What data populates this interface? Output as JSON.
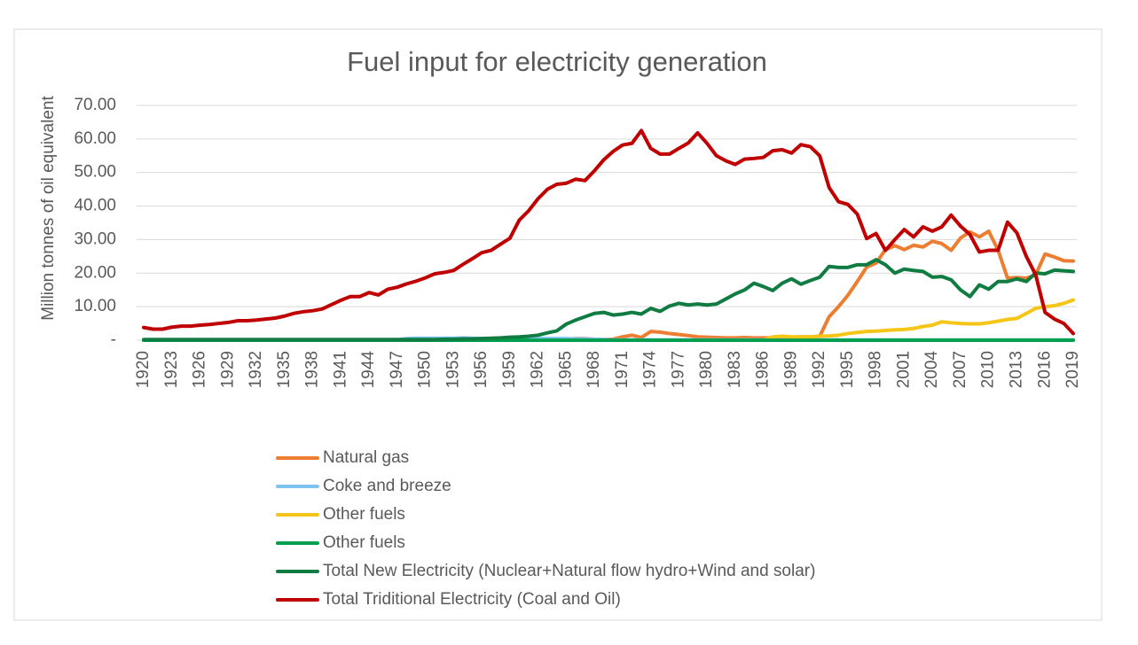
{
  "chart_data": {
    "type": "line",
    "title": "Fuel input for electricity generation",
    "y_label": "Million tonnes of oil equivalent",
    "categories": [
      "1920",
      null,
      null,
      "1923",
      null,
      null,
      "1926",
      null,
      null,
      "1929",
      null,
      null,
      "1932",
      null,
      null,
      "1935",
      null,
      null,
      "1938",
      null,
      null,
      "1941",
      null,
      null,
      "1944",
      null,
      null,
      "1947",
      null,
      null,
      "1950",
      null,
      null,
      "1953",
      null,
      null,
      "1956",
      null,
      null,
      "1959",
      null,
      null,
      "1962",
      null,
      null,
      "1965",
      null,
      null,
      "1968",
      null,
      null,
      "1971",
      null,
      null,
      "1974",
      null,
      null,
      "1977",
      null,
      null,
      "1980",
      null,
      null,
      "1983",
      null,
      null,
      "1986",
      null,
      null,
      "1989",
      null,
      null,
      "1992",
      null,
      null,
      "1995",
      null,
      null,
      "1998",
      null,
      null,
      "2001",
      null,
      null,
      "2004",
      null,
      null,
      "2007",
      null,
      null,
      "2010",
      null,
      null,
      "2013",
      null,
      null,
      "2016",
      null,
      null,
      "2019"
    ],
    "ylim": [
      0,
      70
    ],
    "yticks": [
      {
        "value": 0,
        "label": "-"
      },
      {
        "value": 10,
        "label": "10.00"
      },
      {
        "value": 20,
        "label": "20.00"
      },
      {
        "value": 30,
        "label": "30.00"
      },
      {
        "value": 40,
        "label": "40.00"
      },
      {
        "value": 50,
        "label": "50.00"
      },
      {
        "value": 60,
        "label": "60.00"
      },
      {
        "value": 70,
        "label": "70.00"
      }
    ],
    "grid": true,
    "legend": "bottom",
    "series": [
      {
        "name": "Natural gas",
        "color": "#ED7D31",
        "values": [
          0,
          0,
          0,
          0,
          0,
          0,
          0,
          0,
          0,
          0,
          0,
          0,
          0,
          0,
          0,
          0,
          0,
          0,
          0,
          0,
          0,
          0,
          0,
          0,
          0,
          0,
          0,
          0,
          0,
          0,
          0,
          0,
          0,
          0,
          0,
          0,
          0,
          0,
          0,
          0,
          0,
          0,
          0,
          0,
          0,
          0.3,
          0.5,
          0.5,
          0.3,
          0.2,
          0.3,
          1.0,
          1.5,
          0.8,
          2.6,
          2.4,
          2.0,
          1.7,
          1.4,
          1.0,
          0.9,
          0.8,
          0.7,
          0.7,
          0.8,
          0.7,
          0.7,
          0.7,
          0.8,
          0.9,
          1.0,
          1.0,
          1.2,
          7.0,
          10.0,
          13.4,
          17.5,
          21.8,
          23.0,
          27.0,
          28.2,
          27.0,
          28.3,
          27.8,
          29.5,
          28.8,
          26.8,
          30.5,
          32.3,
          30.8,
          32.5,
          26.8,
          18.5,
          18.7,
          18.5,
          19.5,
          25.7,
          24.8,
          23.7,
          23.6
        ]
      },
      {
        "name": "Coke and breeze",
        "color": "#7FC4F0",
        "values": [
          0.1,
          0.1,
          0.1,
          0.1,
          0.1,
          0.1,
          0.1,
          0.1,
          0.1,
          0.1,
          0.1,
          0.1,
          0.1,
          0.1,
          0.1,
          0.1,
          0.1,
          0.1,
          0.1,
          0.1,
          0.1,
          0.1,
          0.1,
          0.1,
          0.1,
          0.1,
          0.1,
          0.1,
          0.5,
          0.6,
          0.6,
          0.6,
          0.6,
          0.6,
          0.7,
          0.6,
          0.5,
          0.5,
          0.5,
          0.5,
          0.5,
          0.5,
          0.5,
          0.5,
          0.5,
          0.5,
          0.4,
          0.4,
          0.3,
          0.2,
          0.1,
          0.1,
          0.1,
          0.1,
          0.1,
          0.1,
          0.1,
          0.1,
          0.1,
          0.1,
          0.1,
          0.1,
          0.1,
          0.1,
          0.1,
          0.1,
          0.1,
          0.1,
          0.1,
          0.1,
          0.1,
          0.1,
          0.1,
          0.1,
          0.1,
          0.1,
          0.1,
          0.1,
          0.1,
          0.1,
          0.1,
          0.1,
          0.1,
          0.1,
          0.1,
          0.1,
          0.1,
          0.1,
          0.1,
          0.1,
          0.1,
          0.1,
          0.1,
          0.1,
          0.1,
          0.1,
          0.1,
          0.1,
          0.1,
          0.1
        ]
      },
      {
        "name": "Other fuels",
        "color": "#F5C518",
        "values": [
          0,
          0,
          0,
          0,
          0,
          0,
          0,
          0,
          0,
          0,
          0,
          0,
          0,
          0,
          0,
          0,
          0,
          0,
          0,
          0,
          0,
          0,
          0,
          0,
          0,
          0,
          0,
          0,
          0,
          0,
          0,
          0,
          0,
          0,
          0,
          0,
          0,
          0,
          0,
          0,
          0,
          0,
          0,
          0,
          0,
          0,
          0,
          0,
          0,
          0,
          0,
          0,
          0,
          0,
          0,
          0,
          0,
          0,
          0,
          0,
          0,
          0,
          0,
          0,
          0,
          0,
          0,
          1.0,
          1.2,
          1.0,
          1.0,
          1.0,
          1.2,
          1.3,
          1.5,
          2.0,
          2.3,
          2.6,
          2.7,
          2.9,
          3.1,
          3.2,
          3.5,
          4.1,
          4.5,
          5.5,
          5.2,
          5.0,
          4.9,
          4.9,
          5.2,
          5.7,
          6.2,
          6.5,
          8.0,
          9.5,
          10.0,
          10.3,
          11.0,
          12.0
        ]
      },
      {
        "name": "Other fuels",
        "color": "#00A050",
        "values": [
          0,
          0,
          0,
          0,
          0,
          0,
          0,
          0,
          0,
          0,
          0,
          0,
          0,
          0,
          0,
          0,
          0,
          0,
          0,
          0,
          0,
          0,
          0,
          0,
          0,
          0,
          0,
          0,
          0,
          0,
          0,
          0,
          0,
          0,
          0,
          0,
          0,
          0,
          0,
          0,
          0,
          0,
          0,
          0,
          0,
          0,
          0,
          0,
          0,
          0,
          0,
          0,
          0,
          0,
          0,
          0,
          0,
          0,
          0,
          0,
          0,
          0,
          0,
          0,
          0,
          0,
          0,
          0,
          0,
          0,
          0,
          0,
          0,
          0,
          0,
          0,
          0,
          0,
          0,
          0,
          0,
          0,
          0,
          0,
          0,
          0,
          0,
          0,
          0,
          0,
          0,
          0,
          0,
          0,
          0,
          0,
          0,
          0,
          0,
          0
        ]
      },
      {
        "name": "Total New Electricity (Nuclear+Natural flow hydro+Wind and solar)",
        "color": "#107C41",
        "values": [
          0.2,
          0.2,
          0.2,
          0.2,
          0.2,
          0.2,
          0.2,
          0.2,
          0.2,
          0.2,
          0.2,
          0.2,
          0.2,
          0.2,
          0.2,
          0.2,
          0.2,
          0.2,
          0.2,
          0.2,
          0.2,
          0.2,
          0.2,
          0.2,
          0.2,
          0.2,
          0.2,
          0.2,
          0.2,
          0.2,
          0.2,
          0.2,
          0.3,
          0.3,
          0.4,
          0.4,
          0.5,
          0.6,
          0.7,
          0.9,
          1.0,
          1.2,
          1.5,
          2.2,
          2.8,
          4.8,
          6.0,
          7.0,
          8.0,
          8.3,
          7.5,
          7.8,
          8.3,
          7.8,
          9.5,
          8.6,
          10.2,
          11.0,
          10.5,
          10.8,
          10.5,
          10.8,
          12.3,
          13.8,
          15.0,
          17.0,
          16.0,
          14.8,
          17.0,
          18.3,
          16.7,
          17.8,
          18.8,
          22.0,
          21.7,
          21.7,
          22.5,
          22.5,
          24.0,
          22.5,
          20.0,
          21.2,
          20.8,
          20.5,
          18.8,
          19.0,
          18.0,
          15.0,
          13.0,
          16.5,
          15.2,
          17.5,
          17.5,
          18.3,
          17.5,
          20.0,
          19.8,
          20.9,
          20.7,
          20.5
        ]
      },
      {
        "name": "Total Triditional Electricity (Coal and Oil)",
        "color": "#C00000",
        "values": [
          3.8,
          3.3,
          3.3,
          3.9,
          4.2,
          4.2,
          4.5,
          4.7,
          5.0,
          5.3,
          5.8,
          5.8,
          6.0,
          6.3,
          6.6,
          7.2,
          8.0,
          8.5,
          8.8,
          9.3,
          10.6,
          11.9,
          13.0,
          13.0,
          14.2,
          13.5,
          15.2,
          15.8,
          16.8,
          17.6,
          18.6,
          19.8,
          20.2,
          20.8,
          22.6,
          24.3,
          26.1,
          26.8,
          28.6,
          30.4,
          35.8,
          38.6,
          42.2,
          45.0,
          46.5,
          46.8,
          48.0,
          47.6,
          50.5,
          53.8,
          56.3,
          58.2,
          58.7,
          62.5,
          57.2,
          55.5,
          55.5,
          57.2,
          58.8,
          61.8,
          58.7,
          55.0,
          53.5,
          52.4,
          54.0,
          54.2,
          54.5,
          56.5,
          56.8,
          55.8,
          58.3,
          57.7,
          55.0,
          45.5,
          41.3,
          40.5,
          37.6,
          30.3,
          31.8,
          26.8,
          30.0,
          33.0,
          30.8,
          33.8,
          32.5,
          33.8,
          37.3,
          34.0,
          31.5,
          26.3,
          26.8,
          26.8,
          35.2,
          32.0,
          25.0,
          19.5,
          8.3,
          6.3,
          5.0,
          2.0
        ]
      }
    ]
  }
}
